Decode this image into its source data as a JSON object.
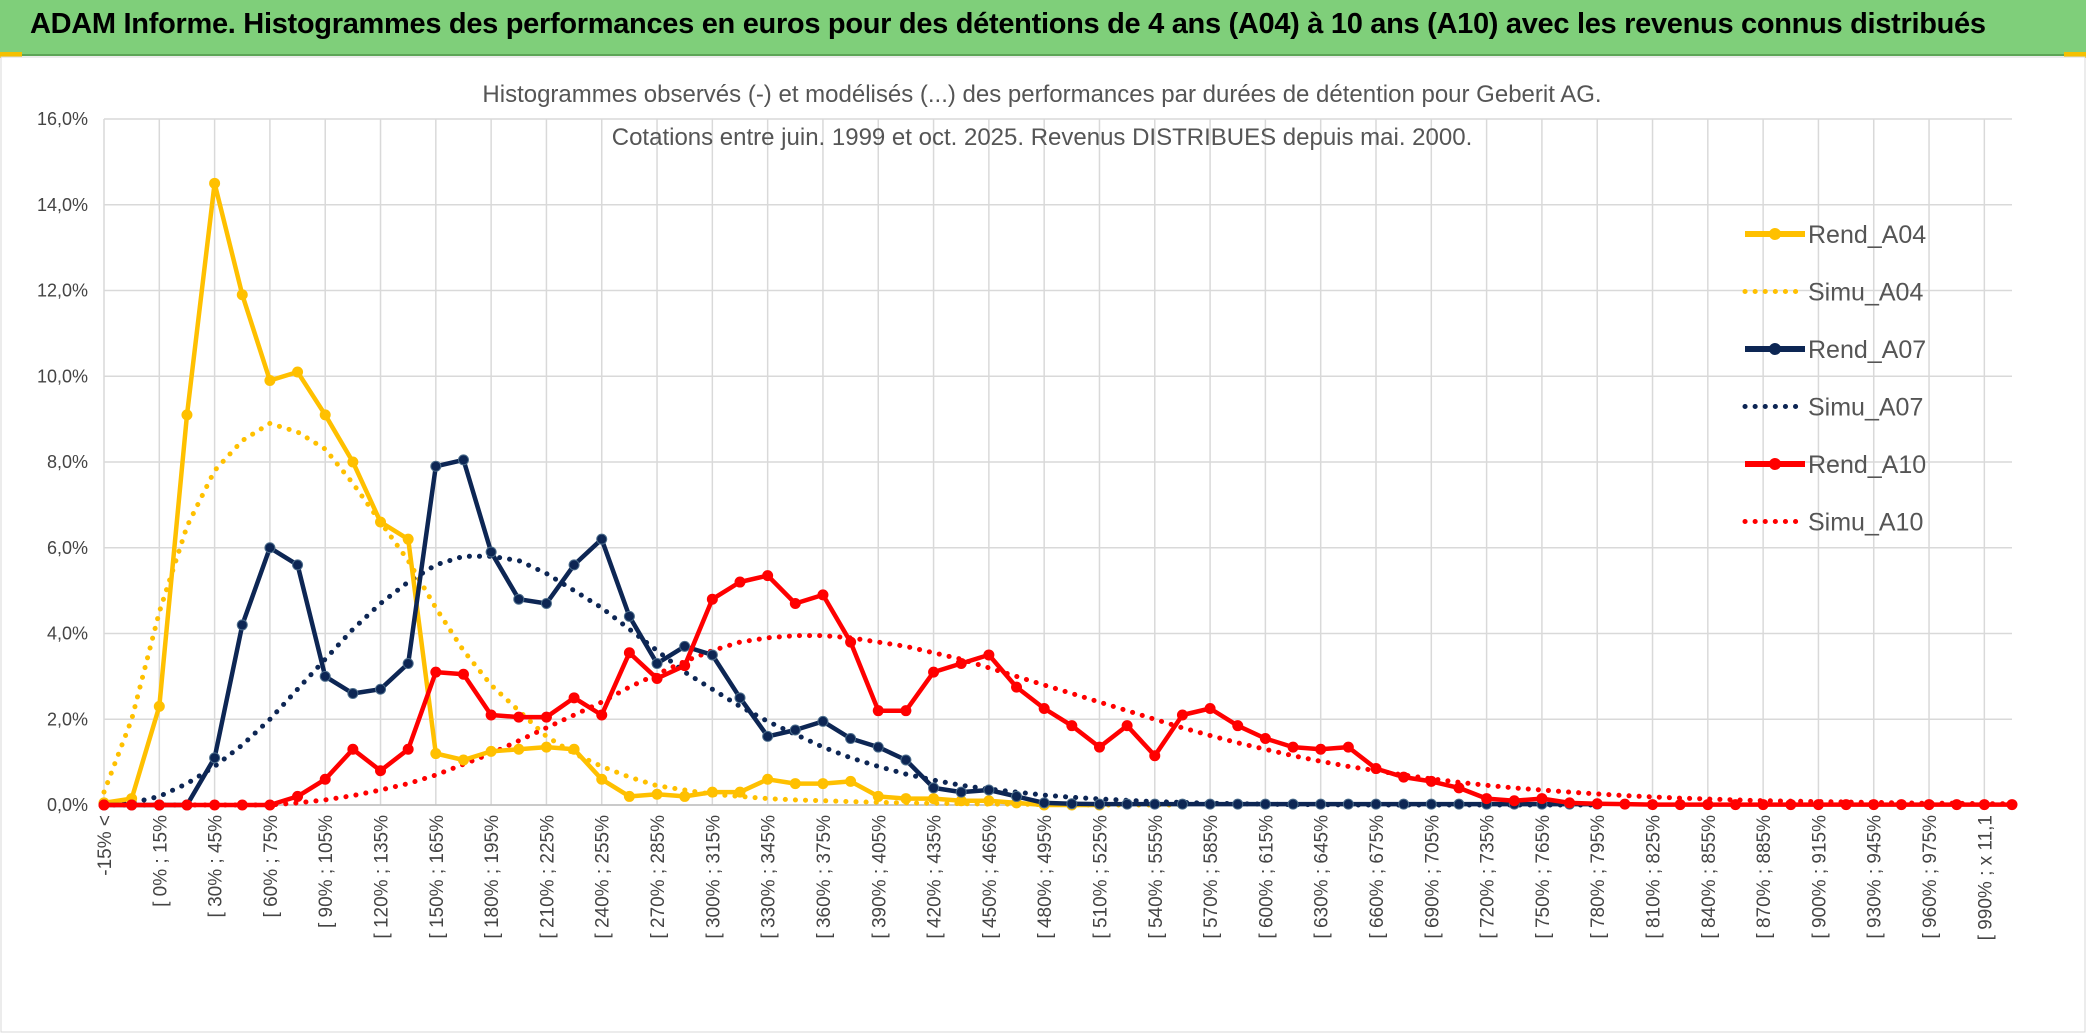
{
  "banner": {
    "title": "ADAM Informe. Histogrammes des performances en euros pour des détentions de 4 ans (A04) à 10 ans (A10) avec les revenus connus distribués"
  },
  "colors": {
    "banner_bg": "#7fcf7a",
    "a04": "#ffc000",
    "a07": "#0d2654",
    "a10": "#ff0000"
  },
  "chart_data": {
    "type": "line",
    "title": "Histogrammes observés (-) et modélisés (...) des performances par durées de détention pour Geberit AG.",
    "subtitle": "Cotations entre juin. 1999 et oct. 2025. Revenus DISTRIBUES depuis mai. 2000.",
    "ylim": [
      0,
      16
    ],
    "y_ticks": [
      "0,0%",
      "2,0%",
      "4,0%",
      "6,0%",
      "8,0%",
      "10,0%",
      "12,0%",
      "14,0%",
      "16,0%"
    ],
    "grid": true,
    "legend_position": "right",
    "x_labels": [
      "-15% <",
      "[ 0% ; 15%",
      "[ 30% ; 45%",
      "[ 60% ; 75%",
      "[ 90% ; 105%",
      "[ 120% ; 135%",
      "[ 150% ; 165%",
      "[ 180% ; 195%",
      "[ 210% ; 225%",
      "[ 240% ; 255%",
      "[ 270% ; 285%",
      "[ 300% ; 315%",
      "[ 330% ; 345%",
      "[ 360% ; 375%",
      "[ 390% ; 405%",
      "[ 420% ; 435%",
      "[ 450% ; 465%",
      "[ 480% ; 495%",
      "[ 510% ; 525%",
      "[ 540% ; 555%",
      "[ 570% ; 585%",
      "[ 600% ; 615%",
      "[ 630% ; 645%",
      "[ 660% ; 675%",
      "[ 690% ; 705%",
      "[ 720% ; 735%",
      "[ 750% ; 765%",
      "[ 780% ; 795%",
      "[ 810% ; 825%",
      "[ 840% ; 855%",
      "[ 870% ; 885%",
      "[ 900% ; 915%",
      "[ 930% ; 945%",
      "[ 960% ; 975%",
      "[ 990% ; x 11,1"
    ],
    "series": [
      {
        "name": "Rend_A04",
        "style": "solid",
        "color": "#ffc000",
        "values": [
          0.05,
          0.15,
          2.3,
          9.1,
          14.5,
          11.9,
          9.9,
          10.1,
          9.1,
          8.0,
          6.6,
          6.2,
          1.2,
          1.05,
          1.25,
          1.3,
          1.35,
          1.3,
          0.6,
          0.2,
          0.25,
          0.2,
          0.3,
          0.3,
          0.6,
          0.5,
          0.5,
          0.55,
          0.2,
          0.15,
          0.15,
          0.1,
          0.1,
          0.05,
          0.0,
          0.0,
          0.0
        ]
      },
      {
        "name": "Simu_A04",
        "style": "dotted",
        "color": "#ffc000",
        "values": [
          0.3,
          2.0,
          4.5,
          6.5,
          7.8,
          8.5,
          8.9,
          8.7,
          8.3,
          7.5,
          6.6,
          5.7,
          4.6,
          3.6,
          2.8,
          2.2,
          1.6,
          1.2,
          0.9,
          0.65,
          0.45,
          0.35,
          0.25,
          0.2,
          0.15,
          0.12,
          0.1,
          0.08,
          0.06,
          0.05,
          0.04,
          0.03,
          0.02,
          0.02,
          0.01,
          0.01,
          0.0,
          0.0,
          0.0,
          0.0
        ]
      },
      {
        "name": "Rend_A07",
        "style": "solid",
        "color": "#0d2654",
        "values": [
          0,
          0,
          0,
          0,
          1.1,
          4.2,
          6.0,
          5.6,
          3.0,
          2.6,
          2.7,
          3.3,
          7.9,
          8.05,
          5.9,
          4.8,
          4.7,
          5.6,
          6.2,
          4.4,
          3.3,
          3.7,
          3.5,
          2.5,
          1.6,
          1.75,
          1.95,
          1.55,
          1.35,
          1.05,
          0.4,
          0.3,
          0.35,
          0.2,
          0.05,
          0.03,
          0.02,
          0.02,
          0.02,
          0.02,
          0.02,
          0.02,
          0.02,
          0.02,
          0.02,
          0.02,
          0.02,
          0.02,
          0.02,
          0.02,
          0.02,
          0.02,
          0.02,
          0.02,
          0.02
        ]
      },
      {
        "name": "Simu_A07",
        "style": "dotted",
        "color": "#0d2654",
        "values": [
          0,
          0.05,
          0.2,
          0.5,
          0.9,
          1.4,
          2.0,
          2.7,
          3.4,
          4.1,
          4.7,
          5.2,
          5.6,
          5.8,
          5.8,
          5.7,
          5.4,
          5.0,
          4.6,
          4.1,
          3.6,
          3.1,
          2.7,
          2.3,
          1.95,
          1.65,
          1.35,
          1.1,
          0.9,
          0.72,
          0.58,
          0.46,
          0.37,
          0.3,
          0.23,
          0.18,
          0.14,
          0.11,
          0.08,
          0.06,
          0.04,
          0.03,
          0.02,
          0.01,
          0.01,
          0.0,
          0.0,
          0.0,
          0.0,
          0.0,
          0.0,
          0.0,
          0.0,
          0.0,
          0.0
        ]
      },
      {
        "name": "Rend_A10",
        "style": "solid",
        "color": "#ff0000",
        "values": [
          0,
          0,
          0,
          0,
          0,
          0,
          0,
          0.2,
          0.6,
          1.3,
          0.8,
          1.3,
          3.1,
          3.05,
          2.1,
          2.05,
          2.05,
          2.5,
          2.1,
          3.55,
          2.95,
          3.25,
          4.8,
          5.2,
          5.35,
          4.7,
          4.9,
          3.8,
          2.2,
          2.2,
          3.1,
          3.3,
          3.5,
          2.75,
          2.25,
          1.85,
          1.35,
          1.85,
          1.15,
          2.1,
          2.25,
          1.85,
          1.55,
          1.35,
          1.3,
          1.35,
          0.85,
          0.65,
          0.55,
          0.4,
          0.15,
          0.1,
          0.15,
          0.05,
          0.03,
          0.02,
          0.01,
          0.01,
          0.01,
          0.01,
          0.01,
          0.01,
          0.01,
          0.01,
          0.01,
          0.01,
          0.01,
          0.01,
          0.01,
          0.01
        ]
      },
      {
        "name": "Simu_A10",
        "style": "dotted",
        "color": "#ff0000",
        "values": [
          0,
          0,
          0,
          0,
          0,
          0,
          0,
          0.05,
          0.12,
          0.22,
          0.35,
          0.5,
          0.7,
          0.95,
          1.2,
          1.5,
          1.8,
          2.1,
          2.4,
          2.75,
          3.05,
          3.35,
          3.6,
          3.8,
          3.9,
          3.95,
          3.95,
          3.9,
          3.8,
          3.7,
          3.55,
          3.4,
          3.2,
          3.0,
          2.8,
          2.6,
          2.4,
          2.2,
          2.0,
          1.8,
          1.62,
          1.45,
          1.3,
          1.15,
          1.02,
          0.9,
          0.8,
          0.7,
          0.61,
          0.53,
          0.46,
          0.4,
          0.35,
          0.3,
          0.26,
          0.22,
          0.19,
          0.16,
          0.14,
          0.12,
          0.1,
          0.09,
          0.08,
          0.07,
          0.06,
          0.05,
          0.04,
          0.04,
          0.03,
          0.03
        ]
      }
    ]
  }
}
